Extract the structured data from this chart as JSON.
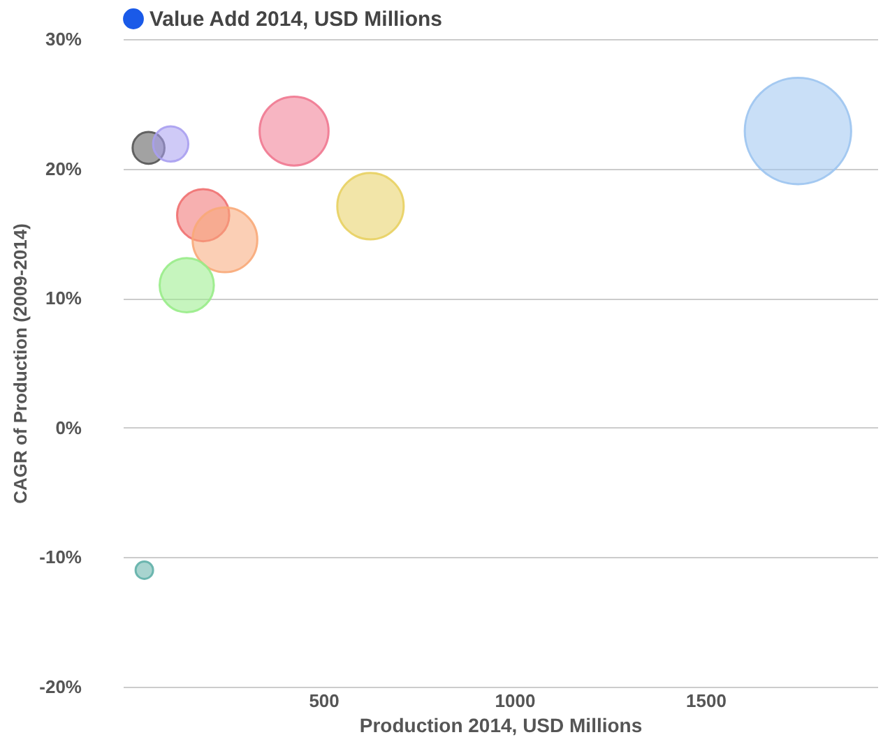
{
  "chart_data": {
    "type": "bubble",
    "xlabel": "Production 2014, USD Millions",
    "ylabel": "CAGR of Production (2009-2014)",
    "legend": "top",
    "grid": "y",
    "xlim": [
      -25,
      1950
    ],
    "xticks": [
      500,
      1000,
      1500
    ],
    "ylim": [
      -20,
      30
    ],
    "yticks": [
      {
        "value": -20,
        "label": "-20%"
      },
      {
        "value": -10,
        "label": "-10%"
      },
      {
        "value": 0,
        "label": "0%"
      },
      {
        "value": 10,
        "label": "10%"
      },
      {
        "value": 20,
        "label": "20%"
      },
      {
        "value": 30,
        "label": "30%"
      }
    ],
    "series": [
      {
        "name": "Value Add 2014, USD Millions",
        "color": "#1a5ae8",
        "x": [
          42,
          100,
          423,
          1742,
          185,
          242,
          623,
          142,
          31
        ],
        "values": [
          21.6,
          21.9,
          22.9,
          22.9,
          16.4,
          14.5,
          17.1,
          11.0,
          -11.0
        ],
        "sizes": [
          0.09,
          0.11,
          0.42,
          1,
          0.24,
          0.37,
          0.39,
          0.26,
          0.027
        ],
        "colors": [
          "#555555",
          "#a89ef0",
          "#f07890",
          "#9cc4f0",
          "#f07070",
          "#f8a878",
          "#e8d060",
          "#98ec88",
          "#60b0a8"
        ]
      }
    ]
  }
}
